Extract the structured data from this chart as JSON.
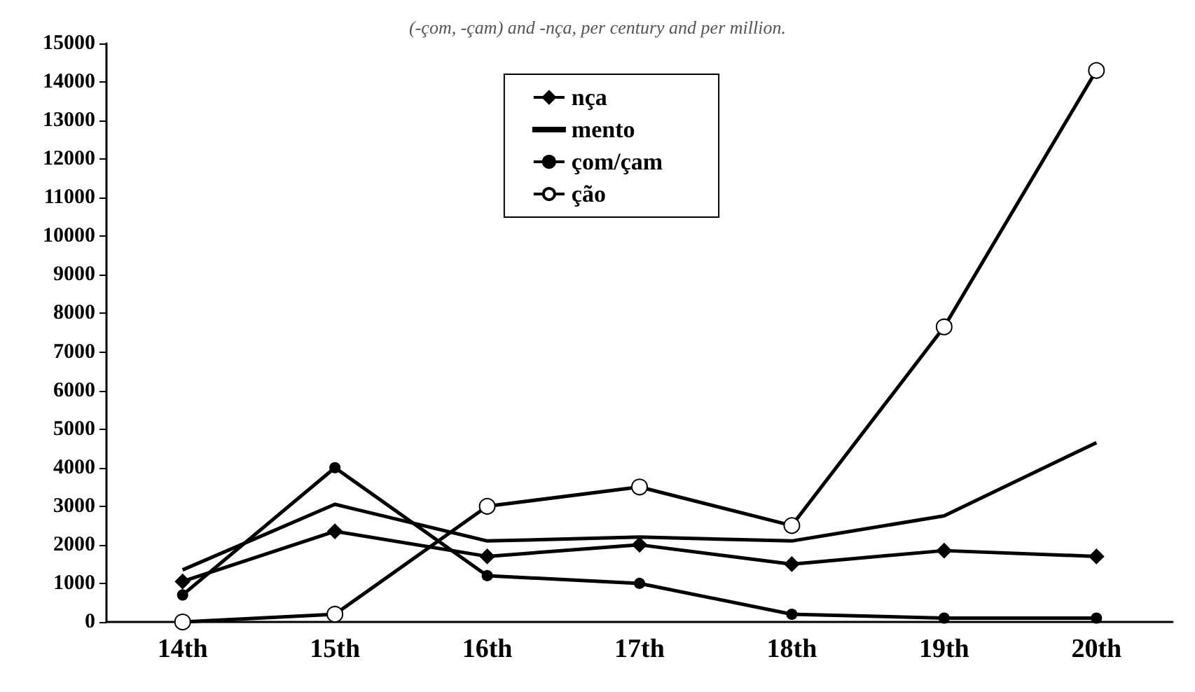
{
  "chart_data": {
    "type": "line",
    "title": "(-çom, -çam) and -nça, per century and per million.",
    "categories": [
      "14th",
      "15th",
      "16th",
      "17th",
      "18th",
      "19th",
      "20th"
    ],
    "series": [
      {
        "name": "nça",
        "color": "#000000",
        "marker": "diamond",
        "values": [
          1050,
          2350,
          1700,
          2000,
          1500,
          1850,
          1700
        ]
      },
      {
        "name": "mento",
        "color": "#000000",
        "marker": "none",
        "values": [
          1350,
          3050,
          2100,
          2200,
          2100,
          2750,
          4650
        ]
      },
      {
        "name": "çom/çam",
        "color": "#000000",
        "marker": "circle",
        "values": [
          700,
          4000,
          1200,
          1000,
          200,
          100,
          100
        ]
      },
      {
        "name": "ção",
        "color": "#000000",
        "marker": "open-circle",
        "values": [
          0,
          200,
          3000,
          3500,
          2500,
          7650,
          14300
        ]
      }
    ],
    "ylim": [
      0,
      15000
    ],
    "yticks": [
      0,
      1000,
      2000,
      3000,
      4000,
      5000,
      6000,
      7000,
      8000,
      9000,
      10000,
      11000,
      12000,
      13000,
      14000,
      15000
    ],
    "grid": false,
    "legend": "top",
    "line_style": "solid"
  }
}
